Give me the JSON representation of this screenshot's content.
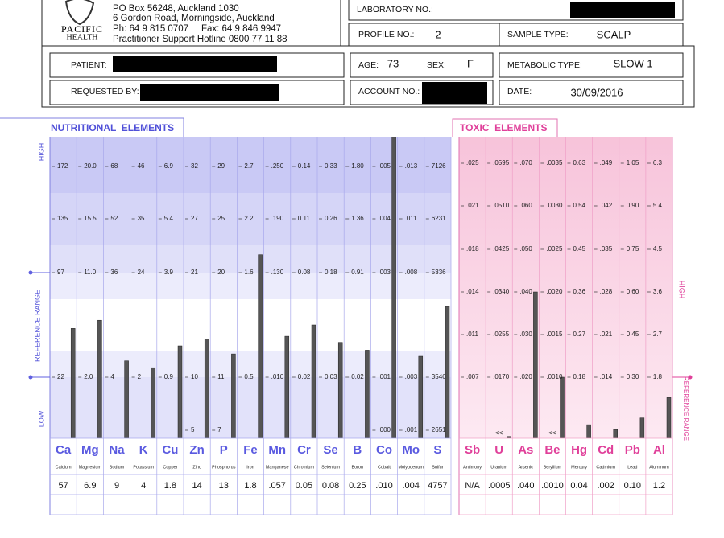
{
  "header": {
    "address": [
      "PO Box 56248, Auckland 1030",
      "6 Gordon Road, Morningside, Auckland",
      "Ph: 64 9 815 0707     Fax: 64 9 846 9947",
      "Practitioner Support Hotline 0800 77 11 88"
    ],
    "logo": [
      "PACIFIC",
      "HEALTH"
    ]
  },
  "form": {
    "laboratory_no": {
      "label": "LABORATORY NO.:"
    },
    "profile_no": {
      "label": "PROFILE NO.:",
      "value": 2
    },
    "sample_type": {
      "label": "SAMPLE TYPE:",
      "value": "SCALP"
    },
    "patient": {
      "label": "PATIENT:"
    },
    "age": {
      "label": "AGE:",
      "value": 73
    },
    "sex": {
      "label": "SEX:",
      "value": "F"
    },
    "metabolic_type": {
      "label": "METABOLIC TYPE:",
      "value": "SLOW 1"
    },
    "requested_by": {
      "label": "REQUESTED BY:"
    },
    "account_no": {
      "label": "ACCOUNT NO.:"
    },
    "date": {
      "label": "DATE:",
      "value": "30/09/2016"
    }
  },
  "nutritional": {
    "title": "NUTRITIONAL  ELEMENTS",
    "axis_labels": {
      "high": "HIGH",
      "reference": "REFERENCE RANGE",
      "low": "LOW"
    },
    "elements": [
      {
        "symbol": "Ca",
        "name": "Calcium",
        "result": 57,
        "scale": [
          172,
          135,
          97,
          22,
          null
        ]
      },
      {
        "symbol": "Mg",
        "name": "Magnesium",
        "result": 6.9,
        "scale": [
          {
            "value": 20,
            "label": "20.0"
          },
          15.5,
          {
            "value": 11,
            "label": "11.0"
          },
          {
            "value": 2,
            "label": "2.0"
          },
          null
        ]
      },
      {
        "symbol": "Na",
        "name": "Sodium",
        "result": 9,
        "scale": [
          68,
          52,
          36,
          4,
          null
        ]
      },
      {
        "symbol": "K",
        "name": "Potassium",
        "result": 4,
        "scale": [
          46,
          35,
          24,
          2,
          null
        ]
      },
      {
        "symbol": "Cu",
        "name": "Copper",
        "result": 1.8,
        "scale": [
          6.9,
          5.4,
          3.9,
          0.9,
          null
        ]
      },
      {
        "symbol": "Zn",
        "name": "Zinc",
        "result": 14,
        "scale": [
          32,
          27,
          21,
          10,
          5
        ]
      },
      {
        "symbol": "P",
        "name": "Phosphorus",
        "result": 13,
        "scale": [
          29,
          25,
          20,
          11,
          7
        ]
      },
      {
        "symbol": "Fe",
        "name": "Iron",
        "result": 1.8,
        "scale": [
          2.7,
          2.2,
          1.6,
          0.5,
          null
        ]
      },
      {
        "symbol": "Mn",
        "name": "Manganese",
        "result": {
          "value": 0.057,
          "label": ".057"
        },
        "scale": [
          {
            "value": 0.25,
            "label": ".250"
          },
          {
            "value": 0.19,
            "label": ".190"
          },
          {
            "value": 0.13,
            "label": ".130"
          },
          {
            "value": 0.01,
            "label": ".010"
          },
          null
        ]
      },
      {
        "symbol": "Cr",
        "name": "Chromium",
        "result": 0.05,
        "scale": [
          0.14,
          0.11,
          0.08,
          0.02,
          null
        ]
      },
      {
        "symbol": "Se",
        "name": "Selenium",
        "result": 0.08,
        "scale": [
          0.33,
          0.26,
          0.18,
          0.03,
          null
        ]
      },
      {
        "symbol": "B",
        "name": "Boron",
        "result": 0.25,
        "scale": [
          {
            "value": 1.8,
            "label": "1.80"
          },
          1.36,
          0.91,
          0.02,
          null
        ]
      },
      {
        "symbol": "Co",
        "name": "Cobalt",
        "result": {
          "value": 0.01,
          "label": ".010"
        },
        "scale": [
          {
            "value": 0.005,
            "label": ".005"
          },
          {
            "value": 0.004,
            "label": ".004"
          },
          {
            "value": 0.003,
            "label": ".003"
          },
          {
            "value": 0.001,
            "label": ".001"
          },
          {
            "value": 0,
            "label": ".000"
          }
        ]
      },
      {
        "symbol": "Mo",
        "name": "Molybdenum",
        "result": {
          "value": 0.004,
          "label": ".004"
        },
        "scale": [
          {
            "value": 0.013,
            "label": ".013"
          },
          {
            "value": 0.011,
            "label": ".011"
          },
          {
            "value": 0.008,
            "label": ".008"
          },
          {
            "value": 0.003,
            "label": ".003"
          },
          {
            "value": 0.001,
            "label": ".001"
          }
        ]
      },
      {
        "symbol": "S",
        "name": "Sulfur",
        "result": 4757,
        "scale": [
          7126,
          6231,
          5336,
          3546,
          2651
        ]
      }
    ]
  },
  "toxic": {
    "title": "TOXIC  ELEMENTS",
    "axis_labels": {
      "high": "HIGH",
      "reference": "REFERENCE RANGE"
    },
    "elements": [
      {
        "symbol": "Sb",
        "name": "Antimony",
        "result": "N/A",
        "scale": [
          {
            "value": 0.025,
            "label": ".025"
          },
          {
            "value": 0.021,
            "label": ".021"
          },
          {
            "value": 0.018,
            "label": ".018"
          },
          {
            "value": 0.014,
            "label": ".014"
          },
          {
            "value": 0.011,
            "label": ".011"
          },
          {
            "value": 0.007,
            "label": ".007"
          }
        ]
      },
      {
        "symbol": "U",
        "name": "Uranium",
        "result": {
          "value": 0.0005,
          "label": ".0005"
        },
        "marker": "<<",
        "scale": [
          {
            "value": 0.0595,
            "label": ".0595"
          },
          {
            "value": 0.051,
            "label": ".0510"
          },
          {
            "value": 0.0425,
            "label": ".0425"
          },
          {
            "value": 0.034,
            "label": ".0340"
          },
          {
            "value": 0.0255,
            "label": ".0255"
          },
          {
            "value": 0.017,
            "label": ".0170"
          }
        ]
      },
      {
        "symbol": "As",
        "name": "Arsenic",
        "result": {
          "value": 0.04,
          "label": ".040"
        },
        "scale": [
          {
            "value": 0.07,
            "label": ".070"
          },
          {
            "value": 0.06,
            "label": ".060"
          },
          {
            "value": 0.05,
            "label": ".050"
          },
          {
            "value": 0.04,
            "label": ".040"
          },
          {
            "value": 0.03,
            "label": ".030"
          },
          {
            "value": 0.02,
            "label": ".020"
          }
        ]
      },
      {
        "symbol": "Be",
        "name": "Beryllium",
        "result": {
          "value": 0.001,
          "label": ".0010"
        },
        "marker": "<<",
        "scale": [
          {
            "value": 0.0035,
            "label": ".0035"
          },
          {
            "value": 0.003,
            "label": ".0030"
          },
          {
            "value": 0.0025,
            "label": ".0025"
          },
          {
            "value": 0.002,
            "label": ".0020"
          },
          {
            "value": 0.0015,
            "label": ".0015"
          },
          {
            "value": 0.001,
            "label": ".0010"
          }
        ]
      },
      {
        "symbol": "Hg",
        "name": "Mercury",
        "result": 0.04,
        "scale": [
          0.63,
          0.54,
          0.45,
          0.36,
          0.27,
          0.18
        ]
      },
      {
        "symbol": "Cd",
        "name": "Cadmium",
        "result": {
          "value": 0.002,
          "label": ".002"
        },
        "scale": [
          {
            "value": 0.049,
            "label": ".049"
          },
          {
            "value": 0.042,
            "label": ".042"
          },
          {
            "value": 0.035,
            "label": ".035"
          },
          {
            "value": 0.028,
            "label": ".028"
          },
          {
            "value": 0.021,
            "label": ".021"
          },
          {
            "value": 0.014,
            "label": ".014"
          }
        ]
      },
      {
        "symbol": "Pb",
        "name": "Lead",
        "result": {
          "value": 0.1,
          "label": "0.10"
        },
        "scale": [
          1.05,
          {
            "value": 0.9,
            "label": "0.90"
          },
          0.75,
          {
            "value": 0.6,
            "label": "0.60"
          },
          0.45,
          {
            "value": 0.3,
            "label": "0.30"
          }
        ]
      },
      {
        "symbol": "Al",
        "name": "Aluminum",
        "result": 1.2,
        "scale": [
          6.3,
          5.4,
          4.5,
          3.6,
          2.7,
          1.8
        ]
      }
    ]
  }
}
